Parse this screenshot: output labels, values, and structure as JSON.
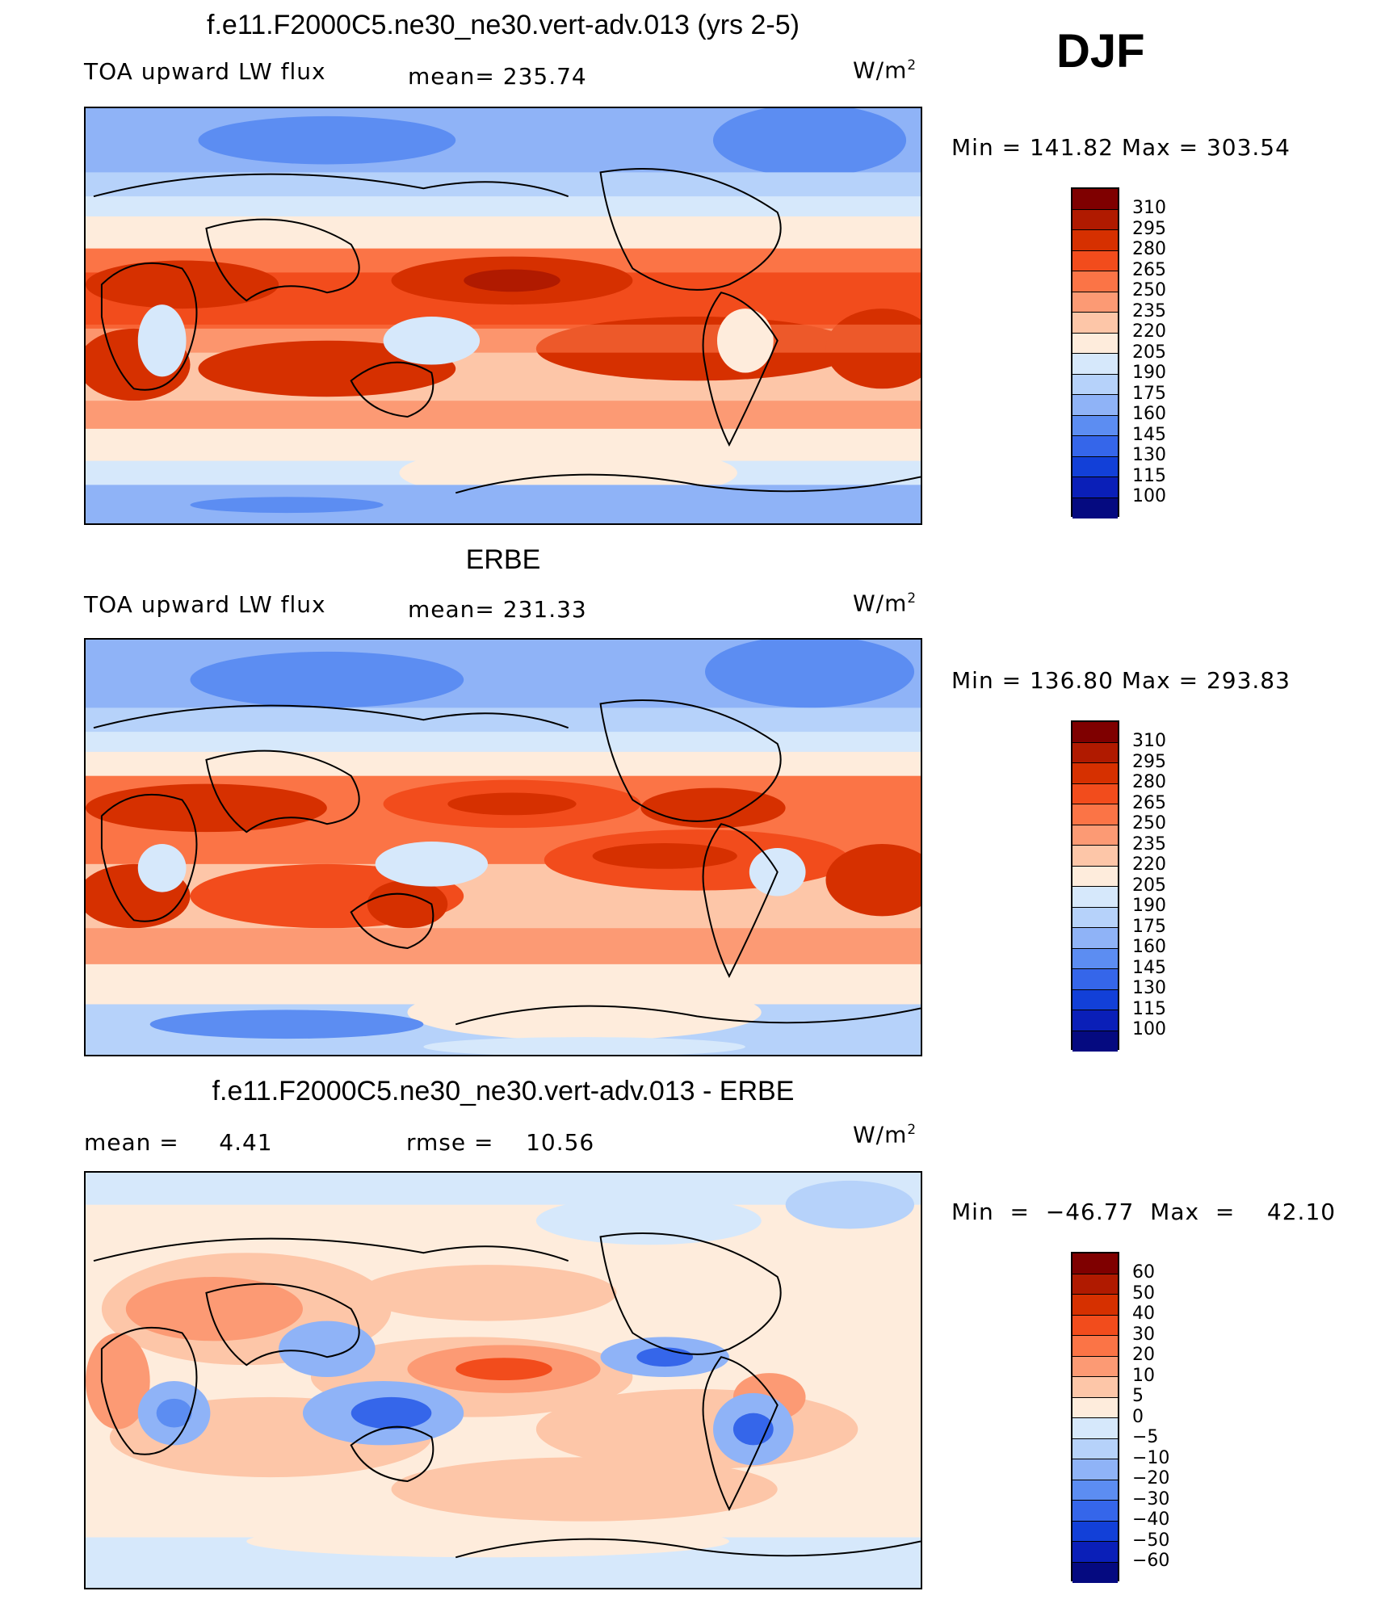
{
  "season": "DJF",
  "units_base": "W/m",
  "units_exp": "2",
  "panels": [
    {
      "title": "f.e11.F2000C5.ne30_ne30.vert-adv.013 (yrs 2-5)",
      "left_label": "TOA upward LW flux",
      "mid_label": "mean=  235.74",
      "minmax": "Min  =  141.82  Max  =  303.54",
      "levels": [
        "310",
        "295",
        "280",
        "265",
        "250",
        "235",
        "220",
        "205",
        "190",
        "175",
        "160",
        "145",
        "130",
        "115",
        "100"
      ]
    },
    {
      "title": "ERBE",
      "left_label": "TOA upward LW flux",
      "mid_label": "mean=  231.33",
      "minmax": "Min  =  136.80  Max  =  293.83",
      "levels": [
        "310",
        "295",
        "280",
        "265",
        "250",
        "235",
        "220",
        "205",
        "190",
        "175",
        "160",
        "145",
        "130",
        "115",
        "100"
      ]
    },
    {
      "title": "f.e11.F2000C5.ne30_ne30.vert-adv.013 - ERBE",
      "left_label": "mean =     4.41",
      "mid_label": "rmse =    10.56",
      "minmax": "Min  =  −46.77  Max  =    42.10",
      "levels": [
        "60",
        "50",
        "40",
        "30",
        "20",
        "10",
        "5",
        "0",
        "−5",
        "−10",
        "−20",
        "−30",
        "−40",
        "−50",
        "−60"
      ]
    }
  ],
  "colors": [
    "#7f0000",
    "#b01a00",
    "#d63000",
    "#f24c1c",
    "#fb7446",
    "#fc9a74",
    "#fdc6a8",
    "#feecdc",
    "#d6e8fb",
    "#b6d2fa",
    "#8fb3f7",
    "#5c8df2",
    "#3566ea",
    "#1240d8",
    "#0a1fb8",
    "#050a80"
  ]
}
